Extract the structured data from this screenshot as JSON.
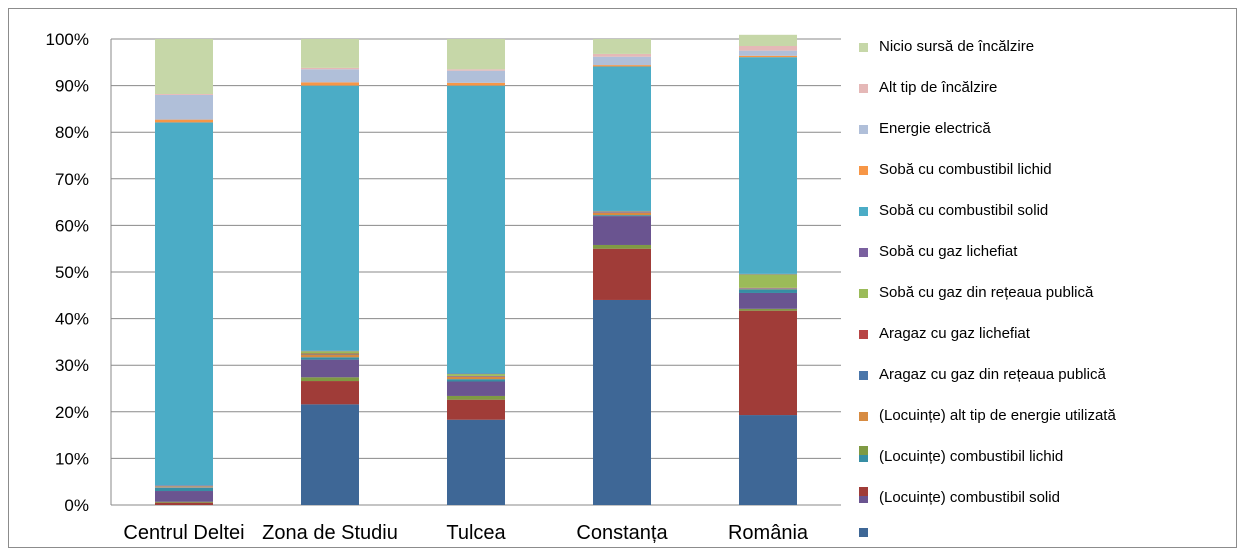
{
  "chart_data": {
    "type": "bar",
    "stacked": true,
    "percent_stacked": true,
    "categories": [
      "Centrul Deltei",
      "Zona de Studiu",
      "Tulcea",
      "Constanța",
      "România"
    ],
    "yticks": [
      "0%",
      "10%",
      "20%",
      "30%",
      "40%",
      "50%",
      "60%",
      "70%",
      "80%",
      "90%",
      "100%"
    ],
    "ylim": [
      0,
      100
    ],
    "grid": true,
    "legend_position": "right",
    "series": [
      {
        "name": "(Locuințe) combustibil solid",
        "color": "#3e6796",
        "values": [
          0,
          21.6,
          18.3,
          44.0,
          19.3
        ]
      },
      {
        "name": "(Locuințe) combustibil lichid",
        "color": "#a03c38",
        "values": [
          0.5,
          5.0,
          4.3,
          11.0,
          22.4
        ]
      },
      {
        "name": "(Locuințe) alt tip de energie utilizată",
        "color": "#7f9a43",
        "values": [
          0.2,
          0.8,
          0.8,
          0.8,
          0.4
        ]
      },
      {
        "name": "Aragaz cu gaz din rețeaua publică",
        "color": "#6a5490",
        "values": [
          2.3,
          3.8,
          3.1,
          6.2,
          3.4
        ]
      },
      {
        "name": "Aragaz cu gaz lichefiat",
        "color": "#378ea4",
        "values": [
          0.7,
          0.5,
          0.5,
          0.2,
          0.8
        ]
      },
      {
        "name": "Sobă cu gaz din rețeaua publică",
        "color": "#d78b41",
        "values": [
          0.1,
          0.6,
          0.5,
          0.5,
          0.1
        ]
      },
      {
        "name": "Sobă cu gaz lichefiat",
        "color": "#4a76aa",
        "values": [
          0.1,
          0.1,
          0.1,
          0.1,
          0.1
        ]
      },
      {
        "name": "Sobă cu combustibil solid",
        "color": "#b84545",
        "values": [
          0.1,
          0.1,
          0.1,
          0.1,
          0.1
        ]
      },
      {
        "name": "Sobă cu combustibil lichid",
        "color": "#9bbb59",
        "values": [
          0.1,
          0.5,
          0.4,
          0.1,
          2.9
        ]
      },
      {
        "name": "Energie electrică",
        "color": "#7a609f",
        "values": [
          0.1,
          0.1,
          0.1,
          0.1,
          0.1
        ]
      },
      {
        "name": "Alt tip de încălzire",
        "color": "#4bacc6",
        "values": [
          77.9,
          56.9,
          61.8,
          31.0,
          46.5
        ]
      },
      {
        "name": "Nicio sursă de încălzire",
        "color": "#f79646",
        "values": [
          0.6,
          0.7,
          0.6,
          0.3,
          0.3
        ]
      },
      {
        "name": "",
        "color": "#b0bfd9",
        "values": [
          5.3,
          2.8,
          2.6,
          1.8,
          1.1
        ]
      },
      {
        "name": "",
        "color": "#e5b8b7",
        "values": [
          0.2,
          0.3,
          0.3,
          0.6,
          1.0
        ]
      },
      {
        "name": "",
        "color": "#c6d7a8",
        "values": [
          11.8,
          6.2,
          6.5,
          3.2,
          2.4
        ]
      }
    ],
    "legend": [
      {
        "label": "Nicio sursă de încălzire",
        "color": "#c6d7a8"
      },
      {
        "label": "Alt tip de încălzire",
        "color": "#e5b8b7"
      },
      {
        "label": "Energie electrică",
        "color": "#b0bfd9"
      },
      {
        "label": "Sobă cu combustibil lichid",
        "color": "#f79646"
      },
      {
        "label": "Sobă cu combustibil solid",
        "color": "#4bacc6"
      },
      {
        "label": "Sobă cu gaz lichefiat",
        "color": "#7a609f"
      },
      {
        "label": "Sobă cu gaz din rețeaua publică",
        "color": "#9bbb59"
      },
      {
        "label": "Aragaz cu gaz lichefiat",
        "color": "#b84545"
      },
      {
        "label": "Aragaz cu gaz din rețeaua publică",
        "color": "#4a76aa"
      },
      {
        "label": "(Locuințe) alt tip de energie utilizată",
        "color": "#d78b41"
      },
      {
        "label": "(Locuințe) combustibil lichid",
        "color": "#378ea4"
      },
      {
        "label": "(Locuințe) combustibil solid",
        "color": "#6a5490"
      }
    ],
    "legend_extra": [
      {
        "color": "#7f9a43"
      },
      {
        "color": "#a03c38"
      },
      {
        "color": "#3e6796"
      }
    ]
  }
}
